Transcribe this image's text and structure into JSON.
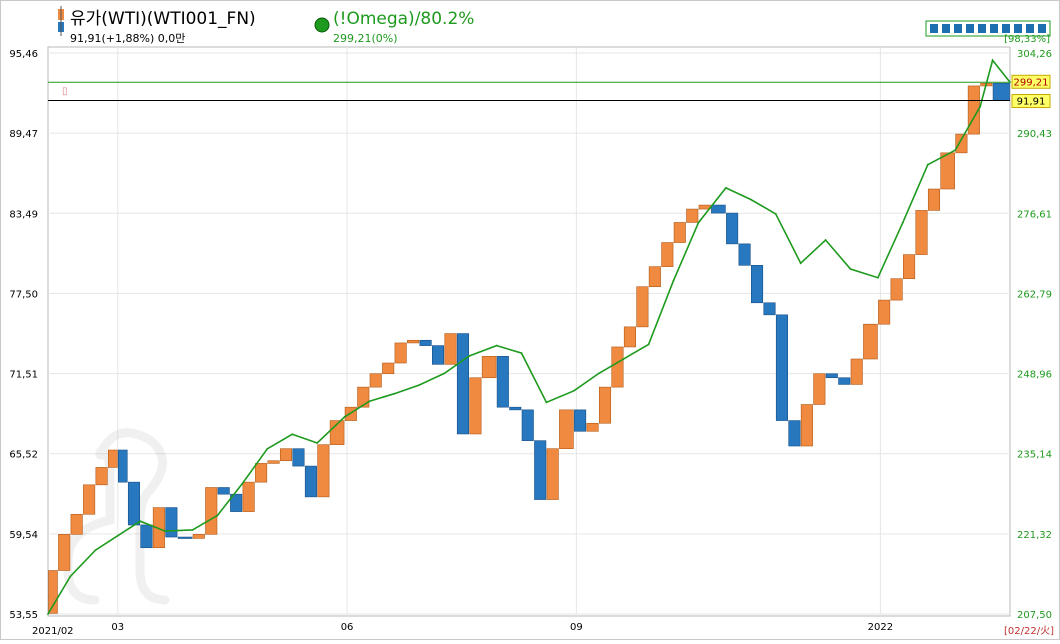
{
  "legend": {
    "main_title": "유가(WTI)(WTI001_FN)",
    "main_value": "91,91(+1,88%) 0,0만",
    "overlay_title": "(!Omega)/80.2%",
    "overlay_value": "299,21(0%)",
    "scroll_readout": "[98,33%]"
  },
  "current_labels": {
    "overlay_last": "299,21",
    "main_last": "91,91"
  },
  "x_axis": {
    "start_label": "2021/02",
    "end_label": "[02/22/火]",
    "ticks": [
      {
        "label": "03",
        "month": "2021-03"
      },
      {
        "label": "06",
        "month": "2021-06"
      },
      {
        "label": "09",
        "month": "2021-09"
      },
      {
        "label": "2022",
        "month": "2022-01"
      }
    ]
  },
  "chart_data": {
    "type": "line",
    "x_range": [
      "2021-02-01",
      "2022-02-22"
    ],
    "grid": true,
    "left_axis": {
      "ticks": [
        "95,46",
        "89,47",
        "83,49",
        "77,50",
        "71,51",
        "65,52",
        "59,54",
        "53,55"
      ],
      "range": [
        53.55,
        95.46
      ]
    },
    "right_axis": {
      "ticks": [
        "304,26",
        "290,43",
        "276,61",
        "262,79",
        "248,96",
        "235,14",
        "221,32",
        "207,50"
      ],
      "range": [
        207.5,
        304.26
      ]
    },
    "series": [
      {
        "name": "유가(WTI)(WTI001_FN)",
        "style": "step-bars",
        "axis": "left",
        "up_color": "#f08a40",
        "down_color": "#2878c0",
        "dates": [
          "2021-02-01",
          "2021-02-05",
          "2021-02-10",
          "2021-02-15",
          "2021-02-20",
          "2021-02-25",
          "2021-03-01",
          "2021-03-05",
          "2021-03-10",
          "2021-03-15",
          "2021-03-20",
          "2021-03-25",
          "2021-03-31",
          "2021-04-05",
          "2021-04-10",
          "2021-04-15",
          "2021-04-20",
          "2021-04-25",
          "2021-04-30",
          "2021-05-05",
          "2021-05-10",
          "2021-05-15",
          "2021-05-20",
          "2021-05-25",
          "2021-05-31",
          "2021-06-05",
          "2021-06-10",
          "2021-06-15",
          "2021-06-20",
          "2021-06-25",
          "2021-06-30",
          "2021-07-05",
          "2021-07-10",
          "2021-07-15",
          "2021-07-20",
          "2021-07-25",
          "2021-07-31",
          "2021-08-05",
          "2021-08-10",
          "2021-08-15",
          "2021-08-20",
          "2021-08-25",
          "2021-08-31",
          "2021-09-05",
          "2021-09-10",
          "2021-09-15",
          "2021-09-20",
          "2021-09-25",
          "2021-09-30",
          "2021-10-05",
          "2021-10-10",
          "2021-10-15",
          "2021-10-20",
          "2021-10-25",
          "2021-10-31",
          "2021-11-05",
          "2021-11-10",
          "2021-11-15",
          "2021-11-20",
          "2021-11-25",
          "2021-11-30",
          "2021-12-05",
          "2021-12-10",
          "2021-12-15",
          "2021-12-20",
          "2021-12-25",
          "2021-12-31",
          "2022-01-05",
          "2022-01-10",
          "2022-01-15",
          "2022-01-20",
          "2022-01-25",
          "2022-01-31",
          "2022-02-05",
          "2022-02-10",
          "2022-02-15",
          "2022-02-22"
        ],
        "values": [
          53.6,
          56.8,
          59.5,
          61.0,
          63.2,
          64.5,
          65.8,
          63.4,
          60.2,
          58.5,
          61.5,
          59.3,
          59.2,
          59.5,
          63.0,
          62.5,
          61.2,
          63.4,
          64.8,
          65.0,
          65.9,
          64.6,
          62.3,
          66.2,
          68.0,
          69.0,
          70.5,
          71.5,
          72.3,
          73.8,
          74.0,
          73.6,
          72.2,
          74.5,
          67.0,
          71.2,
          72.8,
          69.0,
          68.8,
          66.5,
          62.1,
          65.9,
          68.8,
          67.2,
          67.8,
          70.5,
          73.5,
          75.0,
          78.0,
          79.5,
          81.3,
          82.8,
          83.8,
          84.1,
          83.5,
          81.2,
          79.6,
          76.8,
          75.9,
          68.0,
          66.1,
          69.2,
          71.5,
          71.2,
          70.7,
          72.6,
          75.2,
          77.0,
          78.6,
          80.4,
          83.7,
          85.3,
          88.0,
          89.4,
          93.0,
          93.2,
          91.91
        ]
      },
      {
        "name": "(!Omega)/80.2%",
        "style": "line",
        "axis": "right",
        "color": "#1e9a1e",
        "dates": [
          "2021-02-01",
          "2021-02-10",
          "2021-02-20",
          "2021-03-01",
          "2021-03-10",
          "2021-03-20",
          "2021-03-31",
          "2021-04-10",
          "2021-04-20",
          "2021-04-30",
          "2021-05-10",
          "2021-05-20",
          "2021-05-31",
          "2021-06-10",
          "2021-06-20",
          "2021-06-30",
          "2021-07-10",
          "2021-07-20",
          "2021-07-31",
          "2021-08-10",
          "2021-08-20",
          "2021-08-31",
          "2021-09-10",
          "2021-09-20",
          "2021-09-30",
          "2021-10-10",
          "2021-10-20",
          "2021-10-31",
          "2021-11-10",
          "2021-11-20",
          "2021-11-30",
          "2021-12-10",
          "2021-12-20",
          "2021-12-31",
          "2022-01-10",
          "2022-01-20",
          "2022-01-31",
          "2022-02-10",
          "2022-02-15",
          "2022-02-22"
        ],
        "values": [
          207.5,
          214.0,
          218.5,
          221.0,
          223.5,
          221.8,
          222.0,
          224.5,
          230.0,
          236.0,
          238.5,
          237.0,
          241.5,
          244.2,
          245.5,
          247.0,
          249.0,
          252.0,
          253.8,
          252.5,
          244.0,
          246.0,
          249.0,
          251.5,
          254.0,
          265.0,
          275.0,
          281.0,
          279.0,
          276.5,
          268.0,
          272.0,
          267.0,
          265.5,
          275.0,
          285.0,
          287.5,
          295.0,
          303.0,
          299.21
        ]
      }
    ]
  }
}
